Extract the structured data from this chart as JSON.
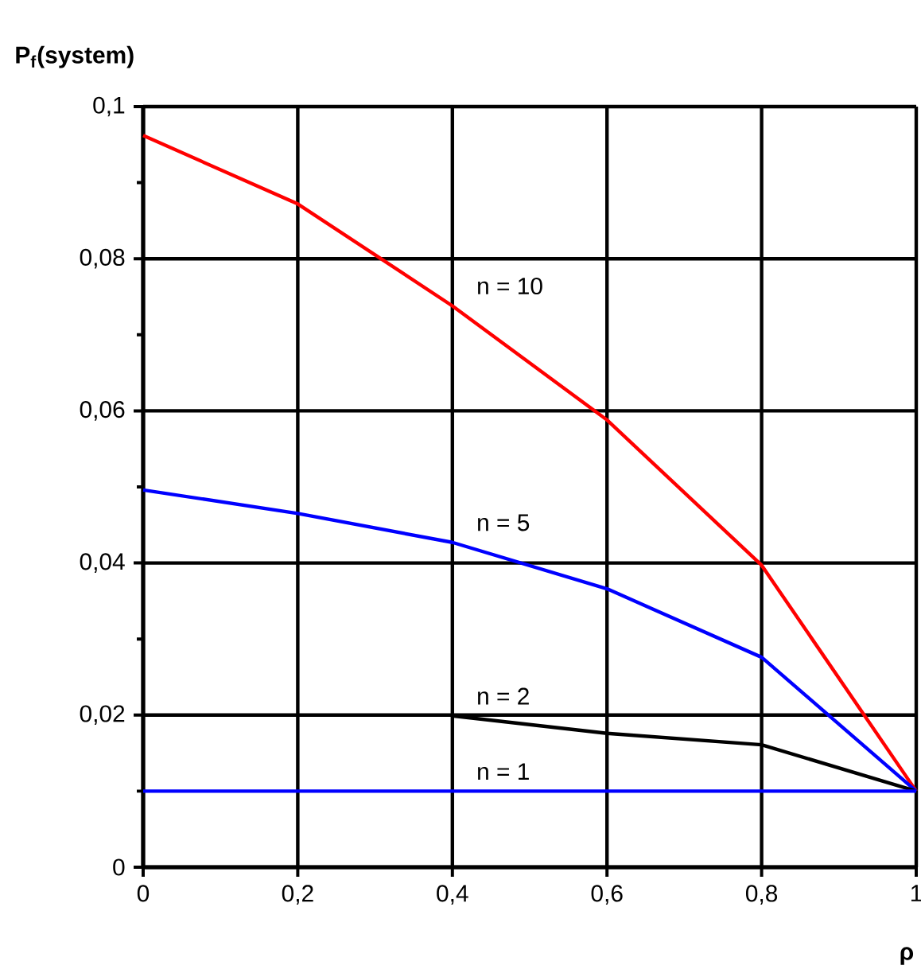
{
  "chart_data": {
    "type": "line",
    "xlabel": "ρ",
    "ylabel": "P$_{f}$(system)",
    "xlim": [
      0,
      1
    ],
    "ylim": [
      0,
      0.1
    ],
    "xticks": [
      0,
      {
        "value": 0.2,
        "label": "0,2"
      },
      {
        "value": 0.4,
        "label": "0,4"
      },
      {
        "value": 0.6,
        "label": "0,6"
      },
      {
        "value": 0.8,
        "label": "0,8"
      },
      1
    ],
    "yticks": [
      0,
      {
        "value": 0.02,
        "label": "0,02"
      },
      {
        "value": 0.04,
        "label": "0,04"
      },
      {
        "value": 0.06,
        "label": "0,06"
      },
      {
        "value": 0.08,
        "label": "0,08"
      },
      {
        "value": 0.1,
        "label": "0,1"
      }
    ],
    "grid": true,
    "legend": false,
    "marker": "none",
    "line_style": "solid",
    "series": [
      {
        "name": "n = 10",
        "color": "#ff0000",
        "x": [
          0,
          0.2,
          0.4,
          0.6,
          0.8,
          1
        ],
        "values": [
          0.0962,
          0.0872,
          0.0738,
          0.0588,
          0.0397,
          0.01
        ]
      },
      {
        "name": "n = 5",
        "color": "#0000ff",
        "x": [
          0,
          0.2,
          0.4,
          0.6,
          0.8,
          1
        ],
        "values": [
          0.0496,
          0.0465,
          0.0427,
          0.0366,
          0.0276,
          0.01
        ]
      },
      {
        "name": "n = 2",
        "color": "#000000",
        "x": [
          0.4,
          0.6,
          0.8,
          1
        ],
        "values": [
          0.0199,
          0.0176,
          0.0161,
          0.01
        ]
      },
      {
        "name": "n = 1",
        "color": "#0000ff",
        "x": [
          0,
          0.2,
          0.4,
          0.6,
          0.8,
          1
        ],
        "values": [
          0.01,
          0.01,
          0.01,
          0.01,
          0.01,
          0.01
        ]
      }
    ]
  }
}
